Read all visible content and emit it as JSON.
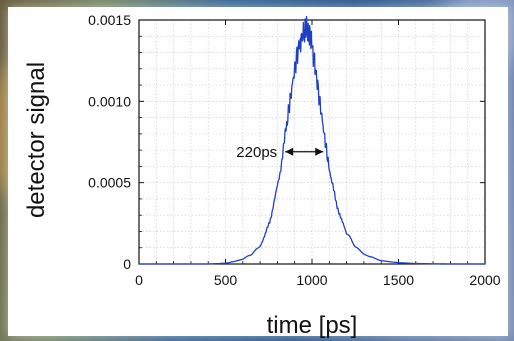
{
  "chart_data": {
    "type": "line",
    "xlabel": "time [ps]",
    "ylabel": "detector signal",
    "xlim": [
      0,
      2000
    ],
    "ylim": [
      0,
      0.0015
    ],
    "xticks": [
      0,
      500,
      1000,
      1500,
      2000
    ],
    "xtick_labels": [
      "0",
      "500",
      "1000",
      "1500",
      "2000"
    ],
    "yticks": [
      0,
      0.0005,
      0.001,
      0.0015
    ],
    "ytick_labels": [
      "0",
      "0.0005",
      "0.0010",
      "0.0015"
    ],
    "grid": true,
    "line_color": "#1f3fc7",
    "series": [
      {
        "x": [
          0,
          400,
          500,
          550,
          600,
          650,
          700,
          730,
          760,
          790,
          820,
          850,
          870,
          890,
          910,
          930,
          945,
          960,
          970,
          980,
          990,
          1000,
          1015,
          1030,
          1050,
          1070,
          1090,
          1110,
          1140,
          1170,
          1200,
          1250,
          1300,
          1400,
          1500,
          1600,
          1700,
          1800,
          2000
        ],
        "y": [
          0,
          0,
          5e-06,
          1.5e-05,
          3e-05,
          6e-05,
          0.00011,
          0.00018,
          0.00028,
          0.00042,
          0.0006,
          0.00082,
          0.00098,
          0.00113,
          0.00127,
          0.00136,
          0.0014,
          0.00143,
          0.00145,
          0.00139,
          0.00141,
          0.00133,
          0.00124,
          0.00112,
          0.00096,
          0.0008,
          0.00065,
          0.00052,
          0.00038,
          0.00027,
          0.00019,
          0.00011,
          6e-05,
          2e-05,
          8e-06,
          3e-06,
          1e-06,
          0,
          0
        ]
      }
    ],
    "annotation": {
      "text": "220ps",
      "arrow_from": 845,
      "arrow_to": 1065,
      "y": 0.00069
    }
  }
}
